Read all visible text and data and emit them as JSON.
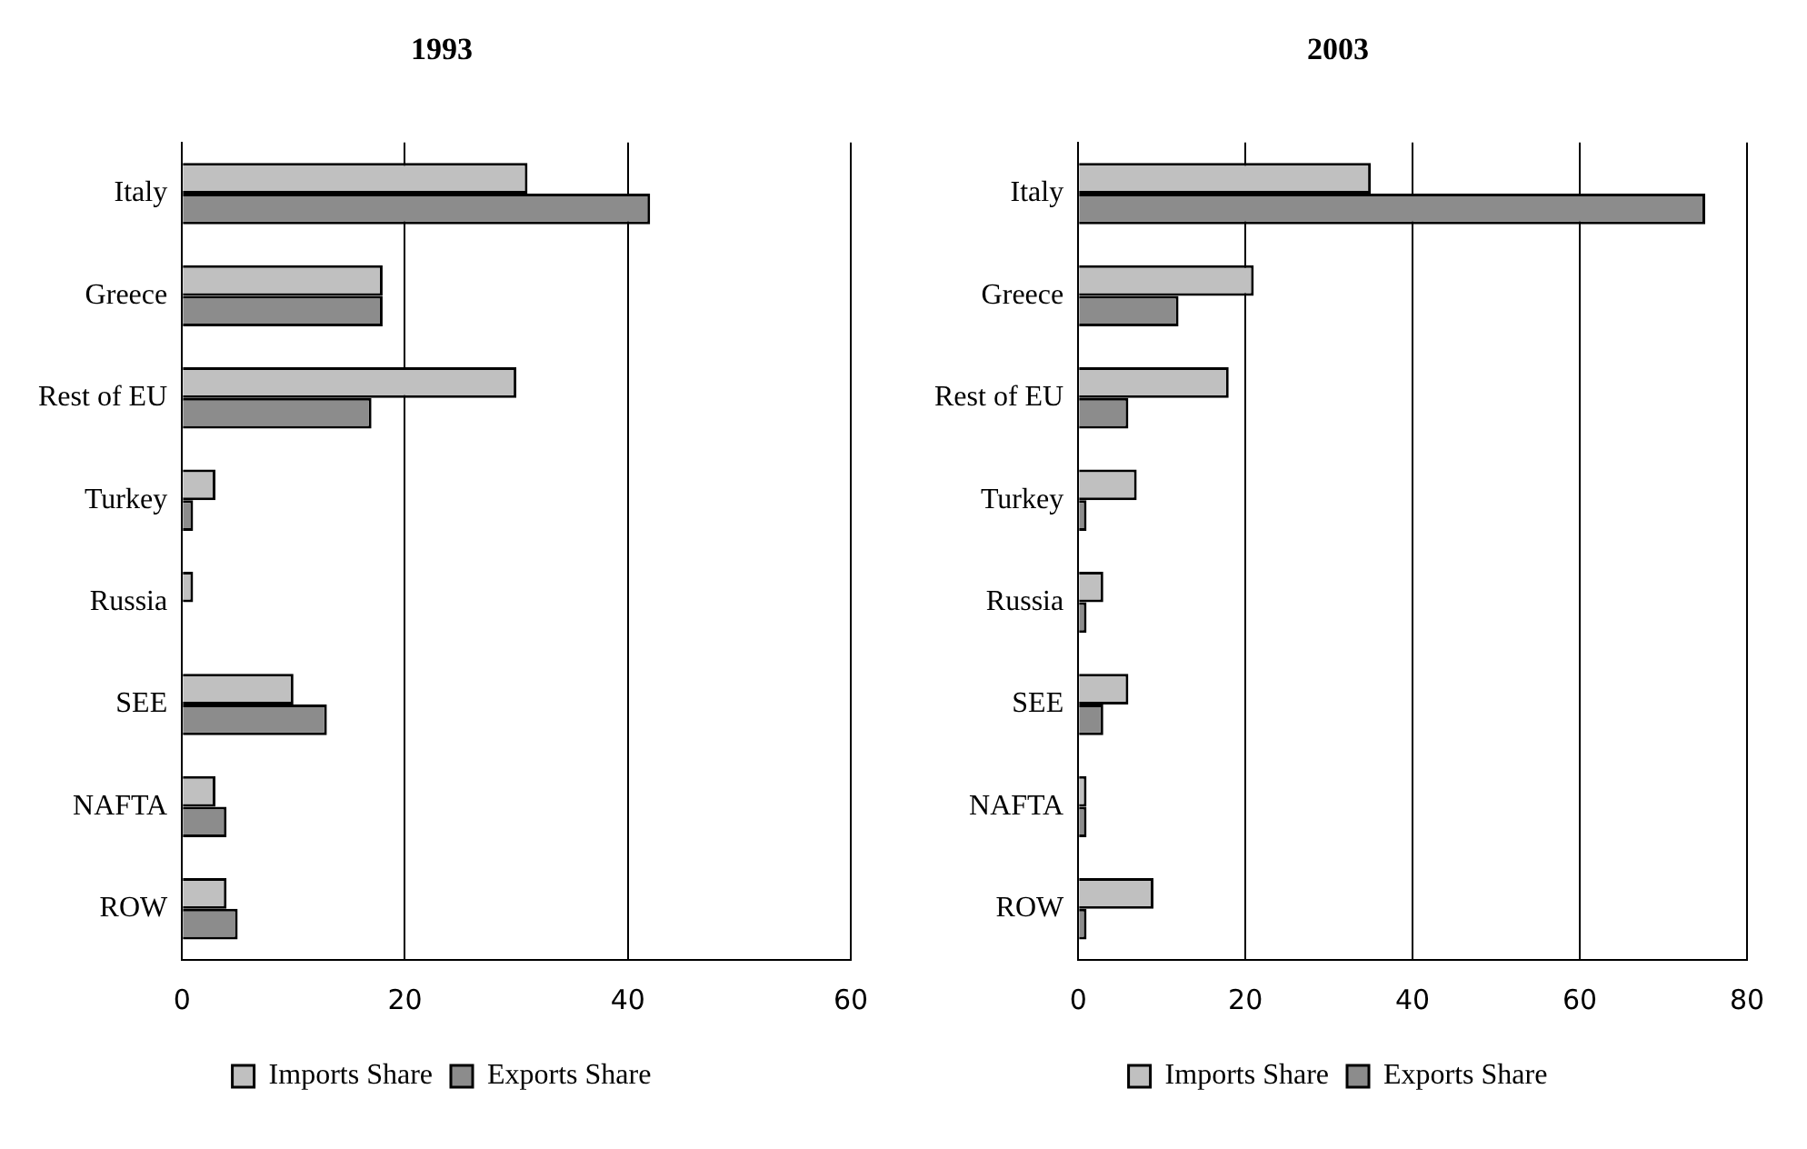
{
  "chart_data": [
    {
      "type": "bar",
      "orientation": "horizontal",
      "title": "1993",
      "categories": [
        "Italy",
        "Greece",
        "Rest of EU",
        "Turkey",
        "Russia",
        "SEE",
        "NAFTA",
        "ROW"
      ],
      "series": [
        {
          "name": "Imports Share",
          "color": "#c0c0c0",
          "values": [
            31,
            18,
            30,
            3,
            1,
            10,
            3,
            4
          ]
        },
        {
          "name": "Exports Share",
          "color": "#8c8c8c",
          "values": [
            42,
            18,
            17,
            1,
            0,
            13,
            4,
            5
          ]
        }
      ],
      "xlim": [
        0,
        60
      ],
      "xticks": [
        0,
        20,
        40,
        60
      ],
      "grid": "x",
      "legend": "bottom"
    },
    {
      "type": "bar",
      "orientation": "horizontal",
      "title": "2003",
      "categories": [
        "Italy",
        "Greece",
        "Rest of EU",
        "Turkey",
        "Russia",
        "SEE",
        "NAFTA",
        "ROW"
      ],
      "series": [
        {
          "name": "Imports Share",
          "color": "#c0c0c0",
          "values": [
            35,
            21,
            18,
            7,
            3,
            6,
            1,
            9
          ]
        },
        {
          "name": "Exports Share",
          "color": "#8c8c8c",
          "values": [
            75,
            12,
            6,
            1,
            1,
            3,
            1,
            1
          ]
        }
      ],
      "xlim": [
        0,
        80
      ],
      "xticks": [
        0,
        20,
        40,
        60,
        80
      ],
      "grid": "x",
      "legend": "bottom"
    }
  ]
}
